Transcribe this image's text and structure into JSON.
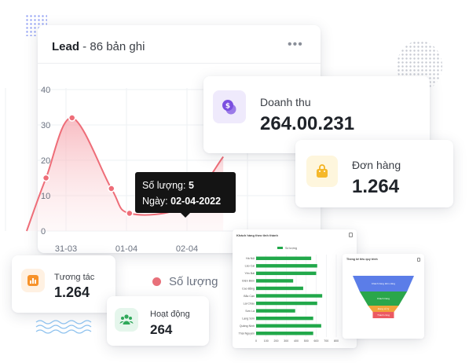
{
  "lead_card": {
    "title_bold": "Lead",
    "title_rest": " - 86 bản ghi",
    "menu_icon": "more-horizontal-icon"
  },
  "tooltip": {
    "qty_label": "Số lượng: ",
    "qty_value": "5",
    "date_label": "Ngày: ",
    "date_value": "02-04-2022"
  },
  "legend": {
    "label": "Số lượng"
  },
  "stats": {
    "revenue": {
      "label": "Doanh thu",
      "value": "264.00.231",
      "icon": "dollar-coin-icon"
    },
    "orders": {
      "label": "Đơn hàng",
      "value": "1.264",
      "icon": "shopping-bag-icon"
    },
    "interactions": {
      "label": "Tương tác",
      "value": "1.264",
      "icon": "bar-chart-icon"
    },
    "activity": {
      "label": "Hoạt động",
      "value": "264",
      "icon": "people-icon"
    }
  },
  "colors": {
    "line": "#ee6d78",
    "fill_top": "#f8b4ba",
    "bar": "#21a84a",
    "funnel": [
      "#5b7de8",
      "#2aa64b",
      "#f2a23a",
      "#ec5a62"
    ]
  },
  "chart_data": [
    {
      "type": "area",
      "x": [
        "31-03",
        "01-04",
        "02-04"
      ],
      "ylim": [
        0,
        40
      ],
      "yticks": [
        "0",
        "10",
        "20",
        "30",
        "40"
      ],
      "series": [
        {
          "name": "Số lượng",
          "points": [
            [
              -0.65,
              0
            ],
            [
              -0.33,
              15
            ],
            [
              0.1,
              32
            ],
            [
              0.75,
              12
            ],
            [
              1.05,
              5
            ],
            [
              1.95,
              7
            ],
            [
              2.6,
              21
            ]
          ]
        }
      ]
    },
    {
      "type": "bar",
      "title": "Khách hàng theo tỉnh thành",
      "categories": [
        "Hà Nội",
        "Lào Cai",
        "Yên Bái",
        "Điện Biên",
        "Cao Bằng",
        "Bắc Cạn",
        "Lai Châu",
        "Sơn La",
        "Lạng Sơn",
        "Quảng Ninh",
        "Thái Nguyên"
      ],
      "values": [
        550,
        610,
        600,
        370,
        470,
        660,
        610,
        390,
        570,
        650,
        570
      ],
      "xticks": [
        "0",
        "100",
        "200",
        "300",
        "400",
        "500",
        "600",
        "700",
        "800"
      ],
      "xlim": [
        0,
        800
      ],
      "series": [
        {
          "name": "Số lượng"
        }
      ]
    },
    {
      "type": "funnel",
      "title": "Thống kê tiêu quy trình",
      "stages": [
        "Khách hàng tiềm năng",
        "Khách hàng",
        "Đang xử lý",
        "Thành công"
      ],
      "values": [
        100,
        60,
        25,
        12
      ]
    }
  ]
}
